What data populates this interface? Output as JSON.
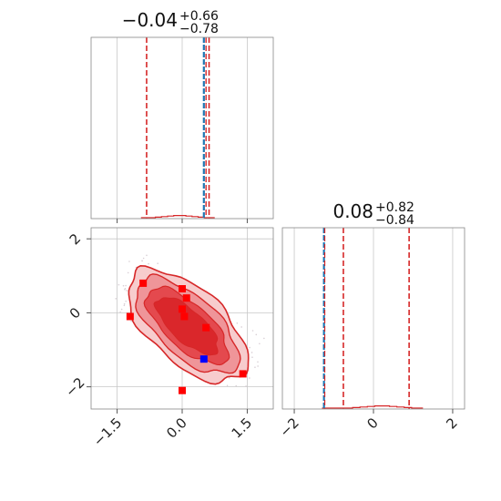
{
  "colors": {
    "posterior": "#d62728",
    "truth_line": "#1f77b4",
    "truth_point": "#0000ff",
    "samples": "#ff0000",
    "contour_levels": [
      "#f7c9ca",
      "#ee9196",
      "#e3444a",
      "#d92629"
    ]
  },
  "chart_data": [
    {
      "type": "histogram",
      "panel": "top-left",
      "title": "−0.04",
      "title_sup": "+0.66",
      "title_sub": "−0.78",
      "xlim": [
        -2.1,
        2.1
      ],
      "median": -0.04,
      "quantiles": [
        -0.82,
        0.62
      ],
      "truth": 0.5,
      "histogram_values": [
        0.0,
        0.0,
        0.005,
        0.01,
        0.015,
        0.02,
        0.02,
        0.015,
        0.01,
        0.005,
        0.0
      ],
      "grid": true
    },
    {
      "type": "contour",
      "panel": "bottom-left",
      "xlim": [
        -2.1,
        2.1
      ],
      "ylim": [
        -2.6,
        2.3
      ],
      "xticks": [
        "−1.5",
        "0.0",
        "1.5"
      ],
      "yticks": [
        "−2",
        "0",
        "2"
      ],
      "truth": [
        0.5,
        -1.25
      ],
      "points": [
        [
          -0.9,
          0.8
        ],
        [
          -1.2,
          -0.1
        ],
        [
          0.0,
          0.65
        ],
        [
          0.1,
          0.4
        ],
        [
          0.0,
          0.1
        ],
        [
          0.05,
          -0.1
        ],
        [
          0.55,
          -0.4
        ],
        [
          1.4,
          -1.65
        ],
        [
          0.0,
          -2.1
        ]
      ],
      "grid": true
    },
    {
      "type": "histogram",
      "panel": "bottom-right",
      "title": "0.08",
      "title_sup": "+0.82",
      "title_sub": "−0.84",
      "xlim": [
        -2.3,
        2.3
      ],
      "xticks": [
        "−2",
        "0",
        "2"
      ],
      "median": 0.08,
      "quantiles": [
        -0.76,
        0.9
      ],
      "truth": -1.25,
      "histogram_values": [
        0.0,
        0.0,
        0.005,
        0.01,
        0.015,
        0.02,
        0.02,
        0.015,
        0.01,
        0.005,
        0.0
      ],
      "grid": true
    }
  ]
}
